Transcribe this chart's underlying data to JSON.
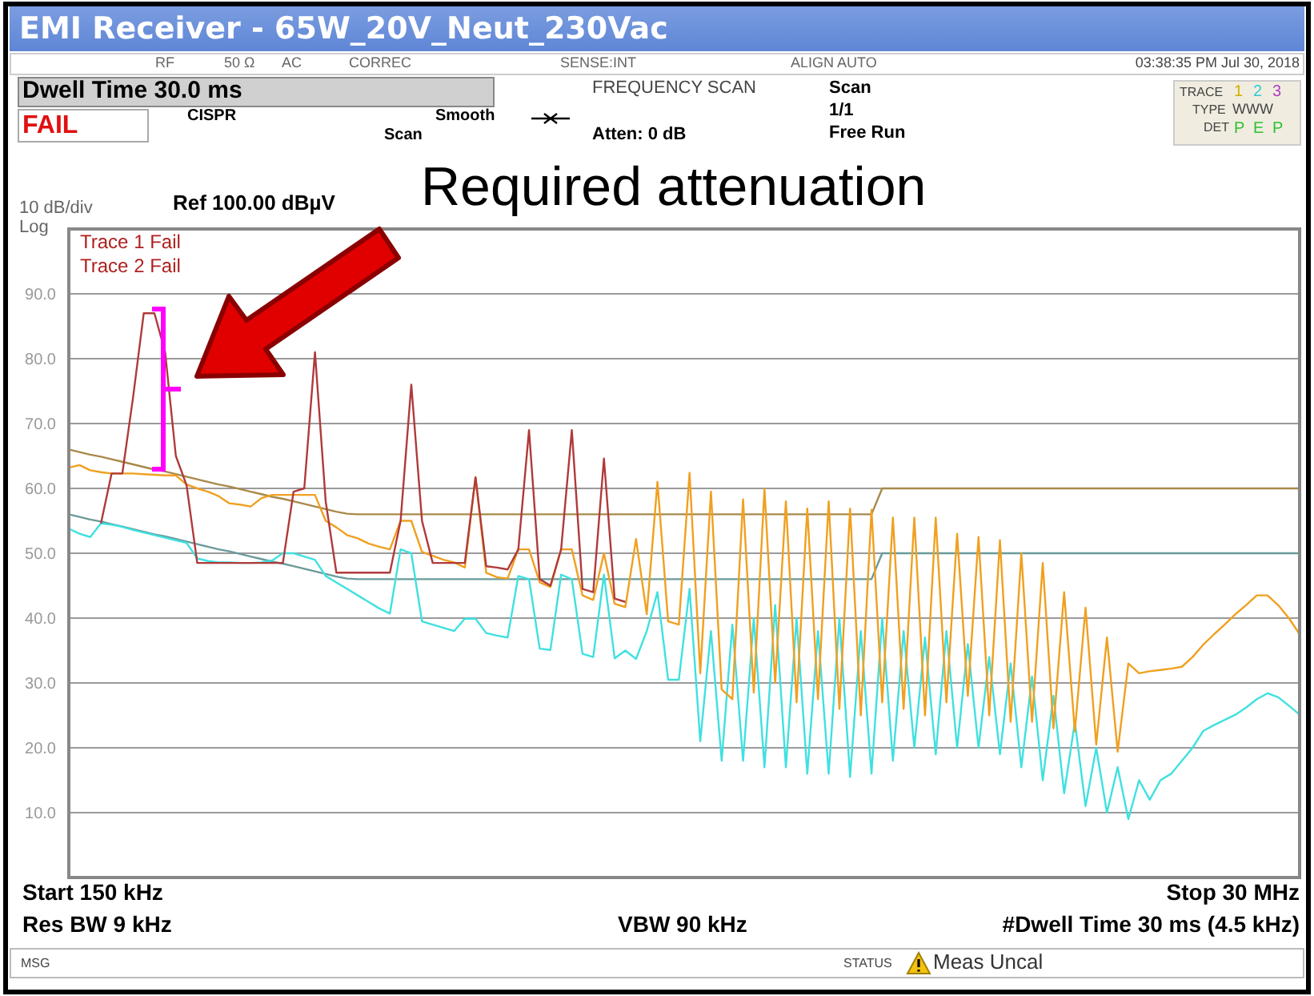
{
  "chart_data": {
    "type": "line",
    "title": "EMI Receiver  - 65W_20V_Neut_230Vac",
    "grid": "y",
    "marker": "none",
    "categories": [
      null,
      null,
      null,
      null,
      null,
      null,
      null,
      null,
      null,
      null,
      null,
      null,
      null,
      null,
      null,
      null,
      null,
      null,
      null,
      null,
      null,
      null,
      null,
      null,
      null,
      null,
      null,
      null,
      null,
      null,
      null,
      null,
      null,
      null,
      null,
      null,
      null,
      null,
      null,
      null,
      null,
      null,
      null,
      null,
      null,
      null,
      null,
      null,
      null,
      null,
      null,
      null,
      null,
      null,
      null,
      null,
      null,
      null,
      null,
      null,
      null,
      null,
      null,
      null,
      null,
      null,
      null,
      null,
      null,
      null,
      null,
      null,
      null,
      null,
      null,
      null,
      null,
      null,
      null,
      null,
      null,
      null,
      null,
      null,
      null,
      null,
      null,
      null,
      null,
      null,
      null,
      null,
      null,
      null,
      null,
      null,
      null,
      null,
      null,
      null,
      null,
      null,
      null,
      null,
      null,
      null,
      null,
      null,
      null,
      null,
      null,
      null,
      null,
      null,
      null,
      null
    ],
    "ylim": [
      0,
      100
    ],
    "yticks": [
      {
        "value": 10,
        "label": "10.0"
      },
      {
        "value": 20,
        "label": "20.0"
      },
      {
        "value": 30,
        "label": "30.0"
      },
      {
        "value": 40,
        "label": "40.0"
      },
      {
        "value": 50,
        "label": "50.0"
      },
      {
        "value": 60,
        "label": "60.0"
      },
      {
        "value": 70,
        "label": "70.0"
      },
      {
        "value": 80,
        "label": "80.0"
      },
      {
        "value": 90,
        "label": "90.0"
      }
    ],
    "series": [
      {
        "color": "#a8894a",
        "values": [
          66,
          65.6,
          65.2,
          64.9,
          64.5,
          64.1,
          63.7,
          63.3,
          62.9,
          62.6,
          62.2,
          61.8,
          61.4,
          61,
          60.6,
          60.3,
          59.9,
          59.5,
          59.1,
          58.7,
          58.4,
          58,
          57.6,
          57.2,
          56.8,
          56.4,
          56.1,
          56,
          56,
          56,
          56,
          56,
          56,
          56,
          56,
          56,
          56,
          56,
          56,
          56,
          56,
          56,
          56,
          56,
          56,
          56,
          56,
          56,
          56,
          56,
          56,
          56,
          56,
          56,
          56,
          56,
          56,
          56,
          56,
          56,
          56,
          56,
          56,
          56,
          56,
          56,
          56,
          56,
          56,
          56,
          56,
          56,
          56,
          56,
          56,
          56,
          60,
          60,
          60,
          60,
          60,
          60,
          60,
          60,
          60,
          60,
          60,
          60,
          60,
          60,
          60,
          60,
          60,
          60,
          60,
          60,
          60,
          60,
          60,
          60,
          60,
          60,
          60,
          60,
          60,
          60,
          60,
          60,
          60,
          60,
          60,
          60,
          60,
          60,
          60,
          60
        ]
      },
      {
        "color": "#6a9a9a",
        "values": [
          56,
          55.6,
          55.2,
          54.9,
          54.5,
          54.1,
          53.7,
          53.3,
          52.9,
          52.6,
          52.2,
          51.8,
          51.4,
          51,
          50.6,
          50.3,
          49.9,
          49.5,
          49.1,
          48.7,
          48.4,
          48,
          47.6,
          47.2,
          46.8,
          46.4,
          46.1,
          46,
          46,
          46,
          46,
          46,
          46,
          46,
          46,
          46,
          46,
          46,
          46,
          46,
          46,
          46,
          46,
          46,
          46,
          46,
          46,
          46,
          46,
          46,
          46,
          46,
          46,
          46,
          46,
          46,
          46,
          46,
          46,
          46,
          46,
          46,
          46,
          46,
          46,
          46,
          46,
          46,
          46,
          46,
          46,
          46,
          46,
          46,
          46,
          46,
          50,
          50,
          50,
          50,
          50,
          50,
          50,
          50,
          50,
          50,
          50,
          50,
          50,
          50,
          50,
          50,
          50,
          50,
          50,
          50,
          50,
          50,
          50,
          50,
          50,
          50,
          50,
          50,
          50,
          50,
          50,
          50,
          50,
          50,
          50,
          50,
          50,
          50,
          50,
          50
        ]
      },
      {
        "color": "#40e0e0",
        "values": [
          53.8,
          53,
          52.5,
          54.6,
          54.4,
          54.1,
          53.6,
          53.2,
          52.8,
          52.4,
          52,
          51.6,
          49.2,
          48.8,
          48.6,
          48.6,
          48.5,
          48.5,
          48.6,
          48.9,
          50,
          50,
          49.5,
          49,
          46.5,
          45.5,
          44.5,
          43.5,
          42.5,
          41.5,
          40.7,
          50.6,
          50,
          39.5,
          39,
          38.5,
          38,
          39.9,
          39.9,
          37.7,
          37.3,
          37,
          46.5,
          46,
          35.3,
          35.1,
          46.7,
          46,
          34.5,
          34,
          46.7,
          33.8,
          35,
          33.7,
          38,
          44,
          30.5,
          30.5,
          44.5,
          21,
          38,
          18,
          39,
          18,
          40,
          17,
          42,
          17,
          40,
          16,
          38,
          16,
          40,
          15.5,
          38,
          16,
          40,
          18,
          38,
          20,
          37,
          19,
          38,
          20,
          36,
          20,
          34,
          19,
          33,
          17,
          31,
          15,
          28,
          13,
          24,
          11,
          20,
          10,
          17,
          9,
          15,
          12,
          15,
          16,
          18,
          20,
          22.6,
          23.5,
          24.3,
          25.1,
          26.2,
          27.5,
          28.4,
          27.8,
          26.5,
          25.1
        ]
      },
      {
        "color": "#f0a020",
        "values": [
          63.2,
          63.6,
          62.8,
          62.5,
          62.3,
          62.3,
          62.3,
          62.2,
          62.1,
          62,
          62,
          60.6,
          60,
          59.5,
          58.8,
          57.7,
          57.5,
          57.2,
          58.5,
          59,
          59,
          59,
          59,
          59,
          55,
          54,
          52.8,
          52.3,
          51.5,
          51,
          50.6,
          55,
          55,
          50.2,
          49.6,
          49,
          48.6,
          47.8,
          61.7,
          47,
          46.3,
          46.1,
          50.6,
          50.6,
          45.5,
          44.8,
          50.6,
          50.6,
          43.5,
          42.8,
          50,
          42.2,
          41.7,
          52.2,
          40.6,
          61,
          39.5,
          39,
          62.4,
          31.5,
          59.5,
          29,
          27.5,
          58.3,
          28.5,
          59.9,
          30,
          58,
          27,
          56.9,
          27.5,
          58,
          26,
          56.9,
          25,
          56.7,
          27,
          55.5,
          26,
          55.5,
          25,
          55.5,
          27,
          53,
          28,
          52.5,
          25,
          52,
          24,
          50,
          24,
          48.5,
          23,
          44,
          22.5,
          41.6,
          20.5,
          37,
          19.4,
          33,
          31.5,
          31.8,
          32,
          32.2,
          32.5,
          34,
          35.9,
          37.5,
          39,
          40.6,
          42,
          43.5,
          43.5,
          42,
          40,
          37.5
        ]
      },
      {
        "color": "#b03a3a",
        "values": [
          null,
          null,
          null,
          54.6,
          62.3,
          62.3,
          74,
          87,
          87,
          81,
          65,
          60.5,
          48.5,
          48.5,
          48.5,
          48.5,
          48.5,
          48.5,
          48.5,
          48.5,
          48.5,
          59.5,
          60,
          81,
          58,
          47,
          47,
          47,
          47,
          47,
          47,
          55,
          76,
          55,
          48.5,
          48.5,
          48.5,
          48.5,
          61.7,
          48,
          47.8,
          47.5,
          50.6,
          69,
          46,
          45,
          50.6,
          69,
          44.5,
          44,
          64.6,
          43,
          42.5,
          null,
          null,
          null,
          null,
          null,
          null,
          null,
          null,
          null,
          null,
          null,
          null,
          null,
          null,
          null,
          null,
          null,
          null,
          null,
          null,
          null,
          null,
          null,
          null,
          null,
          null,
          null,
          null,
          null,
          null,
          null,
          null,
          null,
          null,
          null,
          null,
          null,
          null,
          null,
          null,
          null,
          null,
          null,
          null,
          null,
          null,
          null,
          null,
          null,
          null,
          null,
          null,
          null,
          null,
          null,
          null,
          null,
          null,
          null,
          null,
          null,
          null,
          null
        ]
      }
    ],
    "annotations": [
      "RF",
      "50 Ω",
      "AC",
      "CORREC",
      "SENSE:INT",
      "ALIGN AUTO",
      "03:38:35 PM Jul 30, 2018",
      "Dwell Time 30.0 ms",
      "FAIL",
      "CISPR",
      "Scan",
      "Smooth",
      "FREQUENCY SCAN",
      "Atten: 0 dB",
      "Scan",
      "1/1",
      "Free Run",
      "TRACE",
      "1",
      "2",
      "3",
      "TYPE",
      "WWW",
      "DET",
      "P",
      "E",
      "P",
      "10 dB/div",
      "Ref 100.00 dBµV",
      "Log",
      "Trace 1 Fail",
      "Trace 2 Fail",
      "Required attenuation",
      "Start 150 kHz",
      "Stop 30 MHz",
      "Res BW 9 kHz",
      "VBW 90 kHz",
      "#Dwell Time 30 ms (4.5 kHz)",
      "MSG",
      "STATUS",
      "Meas Uncal"
    ]
  }
}
